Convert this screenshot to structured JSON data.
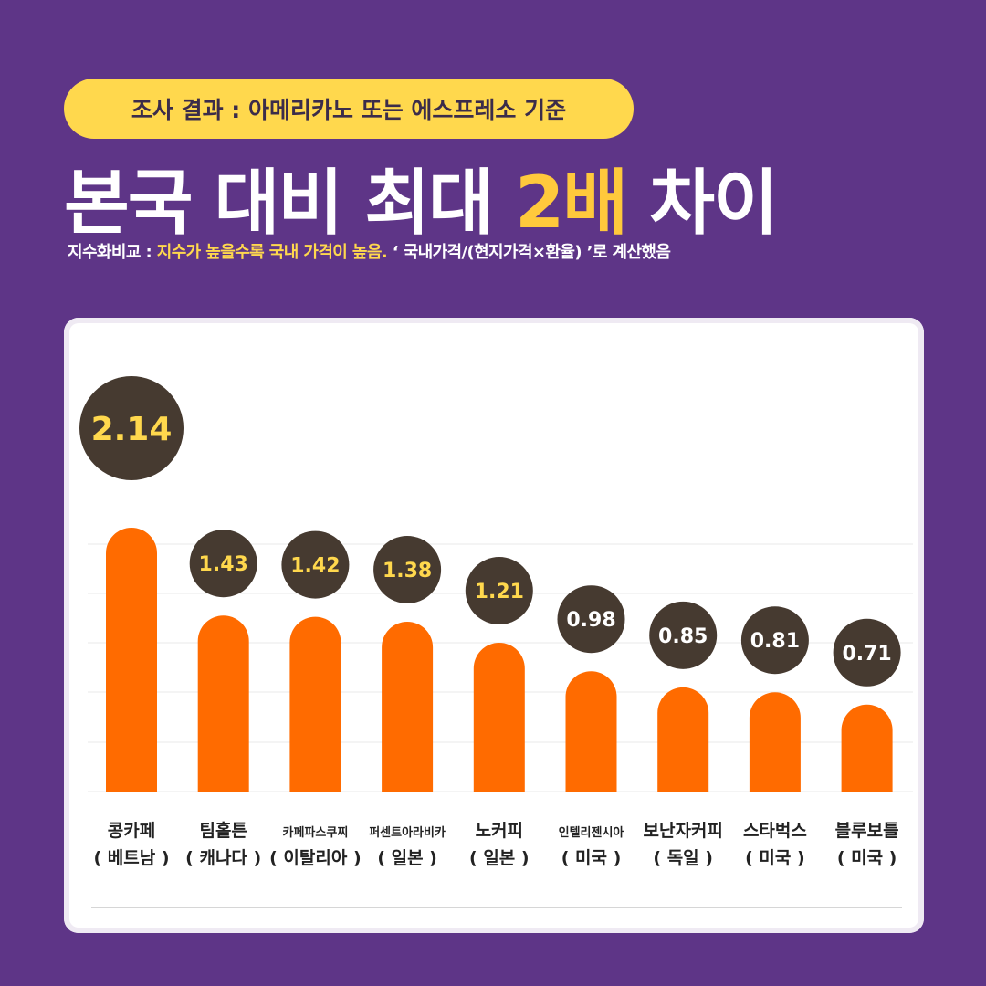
{
  "header": {
    "badge": "조사 결과 : 아메리카노 또는 에스프레소 기준",
    "headline_prefix": "본국 대비 최대 ",
    "headline_highlight": "2배",
    "headline_suffix": " 차이",
    "subtitle_label": "지수화비교 : ",
    "subtitle_highlight": "지수가 높을수록 국내 가격이 높음.",
    "subtitle_formula": " ‘ 국내가격/(현지가격×환율) ’로  계산했음"
  },
  "colors": {
    "background": "#5e3587",
    "bar": "#ff6b00",
    "bubble": "#463a30",
    "top_value": "#ffd84d",
    "value": "#ffffff"
  },
  "chart_data": {
    "type": "bar",
    "categories": [
      {
        "name": "콩카페",
        "country": "( 베트남 )"
      },
      {
        "name": "팀홀튼",
        "country": "( 캐나다 )"
      },
      {
        "name": "카페파스쿠찌",
        "country": "( 이탈리아 )"
      },
      {
        "name": "퍼센트아라비카",
        "country": "( 일본 )"
      },
      {
        "name": "노커피",
        "country": "( 일본 )"
      },
      {
        "name": "인텔리젠시아",
        "country": "( 미국 )"
      },
      {
        "name": "보난자커피",
        "country": "( 독일 )"
      },
      {
        "name": "스타벅스",
        "country": "( 미국 )"
      },
      {
        "name": "블루보틀",
        "country": "( 미국 )"
      }
    ],
    "values": [
      2.14,
      1.43,
      1.42,
      1.38,
      1.21,
      0.98,
      0.85,
      0.81,
      0.71
    ],
    "labels": [
      "2.14",
      "1.43",
      "1.42",
      "1.38",
      "1.21",
      "0.98",
      "0.85",
      "0.81",
      "0.71"
    ],
    "ylim": [
      0,
      2.14
    ],
    "grid": true
  }
}
